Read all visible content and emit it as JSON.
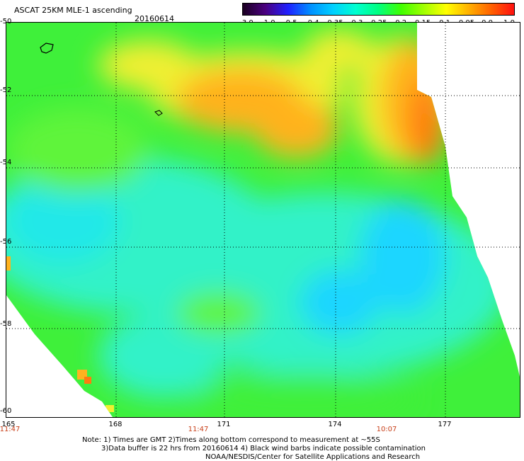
{
  "title": "ASCAT 25KM MLE-1 ascending",
  "date": "20160614",
  "colorbar": {
    "labels": [
      "-3.0",
      "-1.0",
      "-0.5",
      "-0.4",
      "-0.35",
      "-0.3",
      "-0.25",
      "-0.2",
      "-0.15",
      "-0.1",
      "-0.05",
      "0.0",
      "1.0"
    ],
    "colors": [
      "#1a0020",
      "#4b0080",
      "#2020ff",
      "#0090ff",
      "#00d0ff",
      "#00ffd0",
      "#00ff80",
      "#40ff00",
      "#a0ff00",
      "#ffff00",
      "#ffb000",
      "#ff6000",
      "#ff1010"
    ]
  },
  "map": {
    "lat_labels": [
      "-50",
      "-52",
      "-54",
      "-56",
      "-58",
      "-60"
    ],
    "lon_labels": [
      "165",
      "168",
      "171",
      "174",
      "177"
    ],
    "time_labels": [
      "11:47",
      "11:47",
      "10:07"
    ],
    "lon_range": [
      165,
      179.2
    ],
    "lat_range": [
      -50,
      -60
    ],
    "field_colors": {
      "green": "#3ff03a",
      "lightgreen": "#5ef43a",
      "cyan": "#33f2c8",
      "aqua": "#20e8e8",
      "blue": "#1fd6ff",
      "yellow": "#f0ef30",
      "orange": "#ffb21f",
      "deeporange": "#ff7a10"
    }
  },
  "notes": [
    "Note: 1) Times are GMT 2)Times along bottom correspond to measurement at ~55S",
    "3)Data buffer is 22 hrs from 20160614 4) Black wind barbs indicate possible contamination",
    "NOAA/NESDIS/Center for Satellite Applications and Research"
  ]
}
